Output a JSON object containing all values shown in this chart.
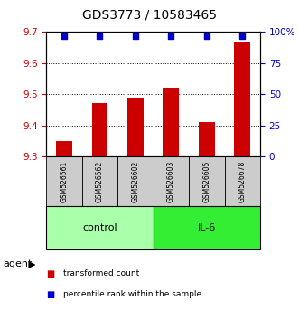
{
  "title": "GDS3773 / 10583465",
  "samples": [
    "GSM526561",
    "GSM526562",
    "GSM526602",
    "GSM526603",
    "GSM526605",
    "GSM526678"
  ],
  "red_values": [
    9.35,
    9.47,
    9.49,
    9.52,
    9.41,
    9.67
  ],
  "blue_values": [
    97,
    97,
    97,
    97,
    97,
    97
  ],
  "ylim_left": [
    9.3,
    9.7
  ],
  "ylim_right": [
    0,
    100
  ],
  "yticks_left": [
    9.3,
    9.4,
    9.5,
    9.6,
    9.7
  ],
  "yticks_right": [
    0,
    25,
    50,
    75,
    100
  ],
  "groups": [
    {
      "label": "control",
      "indices": [
        0,
        1,
        2
      ],
      "color": "#aaffaa"
    },
    {
      "label": "IL-6",
      "indices": [
        3,
        4,
        5
      ],
      "color": "#33ee33"
    }
  ],
  "bar_color": "#cc0000",
  "dot_color": "#0000cc",
  "bar_bottom": 9.3,
  "agent_label": "agent",
  "legend_red": "transformed count",
  "legend_blue": "percentile rank within the sample",
  "title_fontsize": 10,
  "tick_fontsize": 7.5,
  "sample_fontsize": 5.5,
  "group_fontsize": 8
}
